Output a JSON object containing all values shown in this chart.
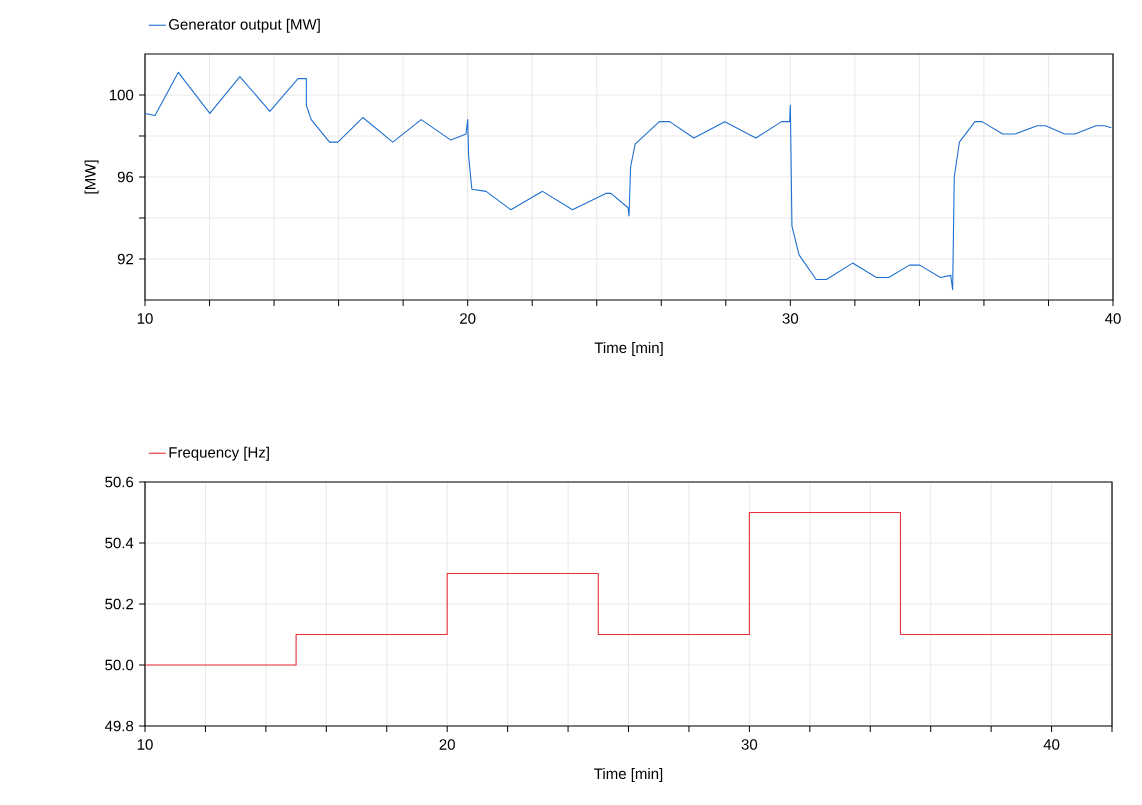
{
  "chart_data": [
    {
      "type": "line",
      "xlabel": "Time [min]",
      "ylabel": "[MW]",
      "xlim": [
        10,
        40
      ],
      "ylim": [
        90,
        102
      ],
      "xticks": [
        10,
        {
          "value": 12,
          "label": null
        },
        {
          "value": 14,
          "label": null
        },
        {
          "value": 16,
          "label": null
        },
        {
          "value": 18,
          "label": null
        },
        20,
        {
          "value": 22,
          "label": null
        },
        {
          "value": 24,
          "label": null
        },
        {
          "value": 26,
          "label": null
        },
        {
          "value": 28,
          "label": null
        },
        30,
        {
          "value": 32,
          "label": null
        },
        {
          "value": 34,
          "label": null
        },
        {
          "value": 36,
          "label": null
        },
        {
          "value": 38,
          "label": null
        },
        40
      ],
      "yticks": [
        92,
        {
          "value": 94,
          "label": null
        },
        96,
        {
          "value": 98,
          "label": null
        },
        100
      ],
      "grid": true,
      "legend": "top left",
      "series": [
        {
          "name": "Generator output [MW]",
          "color": "#1f6fd0",
          "x": [
            10,
            10.31,
            11.03,
            12.01,
            12.94,
            13.87,
            14.74,
            15.0,
            15.0,
            15.15,
            15.72,
            15.98,
            16.75,
            17.68,
            18.56,
            19.48,
            19.95,
            20.0,
            20.03,
            20.13,
            20.57,
            21.34,
            22.32,
            23.25,
            24.28,
            24.44,
            24.97,
            25.0,
            25.05,
            25.19,
            25.94,
            26.26,
            27.01,
            27.97,
            28.93,
            29.73,
            29.98,
            30.0,
            30.05,
            30.27,
            30.8,
            31.12,
            31.93,
            32.67,
            33.05,
            33.69,
            34.01,
            34.65,
            34.97,
            35.03,
            35.08,
            35.24,
            35.72,
            35.94,
            36.58,
            36.96,
            37.65,
            37.91,
            38.5,
            38.82,
            39.47,
            39.73,
            39.95
          ],
          "values": [
            99.1,
            99.0,
            101.1,
            99.1,
            100.9,
            99.2,
            100.8,
            100.8,
            99.5,
            98.8,
            97.7,
            97.7,
            98.9,
            97.7,
            98.8,
            97.8,
            98.1,
            98.8,
            97.0,
            95.4,
            95.3,
            94.4,
            95.3,
            94.4,
            95.2,
            95.2,
            94.5,
            94.1,
            96.5,
            97.6,
            98.7,
            98.7,
            97.9,
            98.7,
            97.9,
            98.7,
            98.7,
            99.5,
            93.6,
            92.2,
            91.0,
            91.0,
            91.8,
            91.1,
            91.1,
            91.7,
            91.7,
            91.1,
            91.2,
            90.5,
            96.0,
            97.7,
            98.7,
            98.7,
            98.1,
            98.1,
            98.5,
            98.5,
            98.1,
            98.1,
            98.5,
            98.5,
            98.4
          ]
        }
      ]
    },
    {
      "type": "step",
      "xlabel": "Time [min]",
      "xlim": [
        10,
        42
      ],
      "ylim": [
        49.8,
        50.6
      ],
      "xticks": [
        10,
        {
          "value": 12,
          "label": null
        },
        {
          "value": 14,
          "label": null
        },
        {
          "value": 16,
          "label": null
        },
        {
          "value": 18,
          "label": null
        },
        20,
        {
          "value": 22,
          "label": null
        },
        {
          "value": 24,
          "label": null
        },
        {
          "value": 26,
          "label": null
        },
        {
          "value": 28,
          "label": null
        },
        30,
        {
          "value": 32,
          "label": null
        },
        {
          "value": 34,
          "label": null
        },
        {
          "value": 36,
          "label": null
        },
        {
          "value": 38,
          "label": null
        },
        40,
        {
          "value": 42,
          "label": null
        }
      ],
      "yticks": [
        49.8,
        {
          "value": 50,
          "label": "50.0"
        },
        50.2,
        50.4,
        50.6
      ],
      "grid": true,
      "legend": "top left",
      "series": [
        {
          "name": "Frequency [Hz]",
          "color": "#e8303a",
          "x": [
            10,
            15,
            20,
            25,
            30,
            35,
            42
          ],
          "values": [
            50.0,
            50.1,
            50.3,
            50.1,
            50.5,
            50.1,
            50.1
          ]
        }
      ]
    }
  ]
}
